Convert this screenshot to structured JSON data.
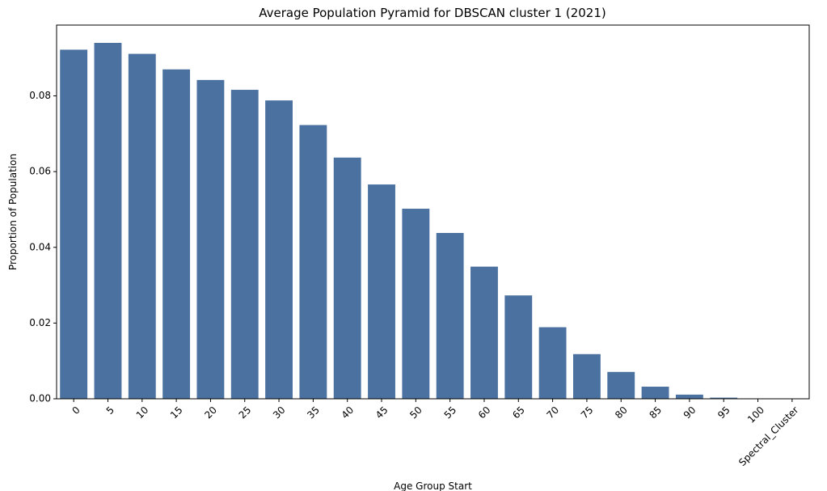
{
  "chart_data": {
    "type": "bar",
    "title": "Average Population Pyramid for DBSCAN cluster 1 (2021)",
    "xlabel": "Age Group Start",
    "ylabel": "Proportion of Population",
    "categories": [
      "0",
      "5",
      "10",
      "15",
      "20",
      "25",
      "30",
      "35",
      "40",
      "45",
      "50",
      "55",
      "60",
      "65",
      "70",
      "75",
      "80",
      "85",
      "90",
      "95",
      "100",
      "Spectral_Cluster"
    ],
    "values": [
      0.0922,
      0.094,
      0.0911,
      0.087,
      0.0842,
      0.0816,
      0.0788,
      0.0723,
      0.0637,
      0.0566,
      0.0502,
      0.0438,
      0.0349,
      0.0273,
      0.0189,
      0.0118,
      0.0071,
      0.0032,
      0.0011,
      0.0003,
      0.0001,
      0.0
    ],
    "ylim": [
      0,
      0.0987
    ],
    "yticks": [
      0.0,
      0.02,
      0.04,
      0.06,
      0.08
    ],
    "ytick_labels": [
      "0.00",
      "0.02",
      "0.04",
      "0.06",
      "0.08"
    ],
    "bar_color": "#4a71a0",
    "grid": false,
    "legend": "none"
  }
}
